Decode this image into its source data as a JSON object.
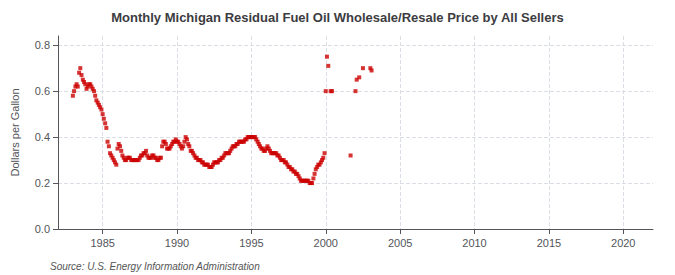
{
  "chart_data": {
    "type": "scatter",
    "title": "Monthly Michigan Residual Fuel Oil Wholesale/Resale Price by All Sellers",
    "ylabel": "Dollars per Gallon",
    "annotations": [
      "Source: U.S. Energy Information Administration"
    ],
    "color": "#cc0000",
    "marker": "square",
    "grid": true,
    "xlim": [
      1982,
      2022
    ],
    "ylim": [
      0.0,
      0.84
    ],
    "xticks": [
      1985,
      1990,
      1995,
      2000,
      2005,
      2010,
      2015,
      2020
    ],
    "yticks": [
      {
        "value": 0.0,
        "label": "0.0"
      },
      0.2,
      0.4,
      0.6,
      0.8
    ],
    "x": [
      1983.0,
      1983.08,
      1983.17,
      1983.25,
      1983.33,
      1983.42,
      1983.5,
      1983.58,
      1983.67,
      1983.75,
      1983.83,
      1983.92,
      1984.0,
      1984.08,
      1984.17,
      1984.25,
      1984.33,
      1984.42,
      1984.5,
      1984.58,
      1984.67,
      1984.75,
      1984.83,
      1984.92,
      1985.0,
      1985.08,
      1985.17,
      1985.25,
      1985.33,
      1985.42,
      1985.5,
      1985.58,
      1985.67,
      1985.75,
      1985.83,
      1985.92,
      1986.0,
      1986.08,
      1986.17,
      1986.25,
      1986.33,
      1986.42,
      1986.5,
      1986.58,
      1986.67,
      1986.75,
      1986.83,
      1986.92,
      1987.0,
      1987.08,
      1987.17,
      1987.25,
      1987.33,
      1987.42,
      1987.5,
      1987.58,
      1987.67,
      1987.75,
      1987.83,
      1987.92,
      1988.0,
      1988.08,
      1988.17,
      1988.25,
      1988.33,
      1988.42,
      1988.5,
      1988.58,
      1988.67,
      1988.75,
      1988.83,
      1988.92,
      1989.0,
      1989.08,
      1989.17,
      1989.25,
      1989.33,
      1989.42,
      1989.5,
      1989.58,
      1989.67,
      1989.75,
      1989.83,
      1989.92,
      1990.0,
      1990.08,
      1990.17,
      1990.25,
      1990.33,
      1990.42,
      1990.5,
      1990.58,
      1990.67,
      1990.75,
      1990.83,
      1990.92,
      1991.0,
      1991.08,
      1991.17,
      1991.25,
      1991.33,
      1991.42,
      1991.5,
      1991.58,
      1991.67,
      1991.75,
      1991.83,
      1991.92,
      1992.0,
      1992.08,
      1992.17,
      1992.25,
      1992.33,
      1992.42,
      1992.5,
      1992.58,
      1992.67,
      1992.75,
      1992.83,
      1992.92,
      1993.0,
      1993.08,
      1993.17,
      1993.25,
      1993.33,
      1993.42,
      1993.5,
      1993.58,
      1993.67,
      1993.75,
      1993.83,
      1993.92,
      1994.0,
      1994.08,
      1994.17,
      1994.25,
      1994.33,
      1994.42,
      1994.5,
      1994.58,
      1994.67,
      1994.75,
      1994.83,
      1994.92,
      1995.0,
      1995.08,
      1995.17,
      1995.25,
      1995.33,
      1995.42,
      1995.5,
      1995.58,
      1995.67,
      1995.75,
      1995.83,
      1995.92,
      1996.0,
      1996.08,
      1996.17,
      1996.25,
      1996.33,
      1996.42,
      1996.5,
      1996.58,
      1996.67,
      1996.75,
      1996.83,
      1996.92,
      1997.0,
      1997.08,
      1997.17,
      1997.25,
      1997.33,
      1997.42,
      1997.5,
      1997.58,
      1997.67,
      1997.75,
      1997.83,
      1997.92,
      1998.0,
      1998.08,
      1998.17,
      1998.25,
      1998.33,
      1998.42,
      1998.5,
      1998.58,
      1998.67,
      1998.75,
      1998.83,
      1998.92,
      1999.0,
      1999.08,
      1999.17,
      1999.25,
      1999.33,
      1999.42,
      1999.5,
      1999.58,
      1999.67,
      1999.75,
      1999.83,
      1999.92,
      2000.0,
      2000.08,
      2000.17,
      2000.33,
      2000.42,
      2001.67,
      2002.0,
      2002.08,
      2002.25,
      2002.5,
      2003.0,
      2003.08
    ],
    "values": [
      0.58,
      0.6,
      0.62,
      0.63,
      0.62,
      0.68,
      0.7,
      0.67,
      0.65,
      0.64,
      0.63,
      0.61,
      0.62,
      0.63,
      0.63,
      0.62,
      0.61,
      0.6,
      0.58,
      0.56,
      0.55,
      0.54,
      0.53,
      0.52,
      0.5,
      0.48,
      0.46,
      0.44,
      0.38,
      0.36,
      0.33,
      0.32,
      0.31,
      0.3,
      0.29,
      0.28,
      0.35,
      0.37,
      0.36,
      0.34,
      0.32,
      0.31,
      0.3,
      0.3,
      0.31,
      0.31,
      0.31,
      0.3,
      0.3,
      0.3,
      0.3,
      0.3,
      0.3,
      0.3,
      0.31,
      0.32,
      0.32,
      0.33,
      0.33,
      0.34,
      0.32,
      0.31,
      0.31,
      0.31,
      0.32,
      0.32,
      0.31,
      0.31,
      0.3,
      0.3,
      0.31,
      0.31,
      0.36,
      0.38,
      0.38,
      0.37,
      0.35,
      0.35,
      0.35,
      0.36,
      0.37,
      0.38,
      0.38,
      0.39,
      0.38,
      0.38,
      0.37,
      0.36,
      0.35,
      0.36,
      0.38,
      0.4,
      0.39,
      0.37,
      0.36,
      0.34,
      0.34,
      0.33,
      0.32,
      0.31,
      0.31,
      0.3,
      0.3,
      0.3,
      0.29,
      0.29,
      0.28,
      0.28,
      0.28,
      0.28,
      0.27,
      0.27,
      0.27,
      0.28,
      0.29,
      0.29,
      0.29,
      0.29,
      0.3,
      0.3,
      0.31,
      0.31,
      0.32,
      0.33,
      0.33,
      0.33,
      0.33,
      0.34,
      0.35,
      0.36,
      0.36,
      0.36,
      0.37,
      0.37,
      0.38,
      0.38,
      0.38,
      0.38,
      0.38,
      0.39,
      0.39,
      0.4,
      0.4,
      0.4,
      0.4,
      0.4,
      0.4,
      0.4,
      0.39,
      0.38,
      0.37,
      0.36,
      0.35,
      0.35,
      0.34,
      0.34,
      0.35,
      0.36,
      0.35,
      0.34,
      0.33,
      0.33,
      0.33,
      0.33,
      0.33,
      0.32,
      0.32,
      0.31,
      0.3,
      0.3,
      0.3,
      0.29,
      0.29,
      0.28,
      0.27,
      0.27,
      0.26,
      0.26,
      0.25,
      0.25,
      0.24,
      0.24,
      0.23,
      0.22,
      0.21,
      0.21,
      0.21,
      0.21,
      0.21,
      0.21,
      0.21,
      0.2,
      0.2,
      0.2,
      0.22,
      0.24,
      0.26,
      0.27,
      0.28,
      0.28,
      0.29,
      0.3,
      0.31,
      0.33,
      0.6,
      0.75,
      0.71,
      0.6,
      0.6,
      0.32,
      0.6,
      0.65,
      0.66,
      0.7,
      0.7,
      0.69
    ]
  }
}
